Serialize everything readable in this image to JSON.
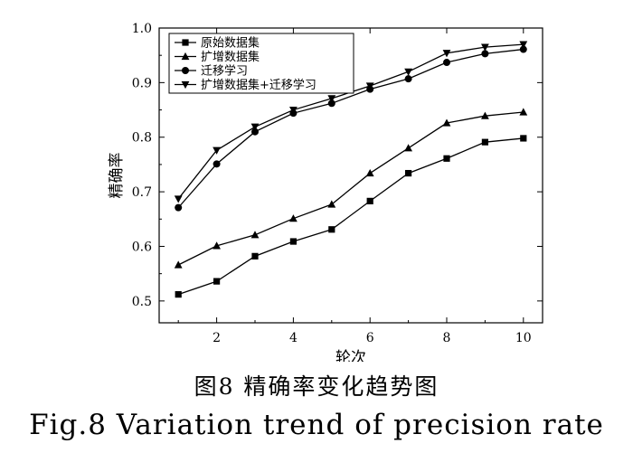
{
  "chart_data": {
    "type": "line",
    "title": "",
    "xlabel": "轮次",
    "ylabel": "精确率",
    "x": [
      1,
      2,
      3,
      4,
      5,
      6,
      7,
      8,
      9,
      10
    ],
    "xlim": [
      0.5,
      10.5
    ],
    "ylim": [
      0.46,
      1.0
    ],
    "xticks": [
      2,
      4,
      6,
      8,
      10
    ],
    "yticks": [
      0.5,
      0.6,
      0.7,
      0.8,
      0.9,
      1.0
    ],
    "ytick_labels": [
      "0.5",
      "0.6",
      "0.7",
      "0.8",
      "0.9",
      "1.0"
    ],
    "grid": false,
    "legend_position": "top-left",
    "series": [
      {
        "name": "原始数据集",
        "marker": "square",
        "values": [
          0.512,
          0.536,
          0.582,
          0.609,
          0.631,
          0.683,
          0.734,
          0.761,
          0.791,
          0.798
        ]
      },
      {
        "name": "扩增数据集",
        "marker": "triangle-up",
        "values": [
          0.566,
          0.601,
          0.621,
          0.651,
          0.677,
          0.734,
          0.78,
          0.826,
          0.839,
          0.846
        ]
      },
      {
        "name": "迁移学习",
        "marker": "circle",
        "values": [
          0.671,
          0.751,
          0.81,
          0.844,
          0.862,
          0.888,
          0.907,
          0.937,
          0.953,
          0.961
        ]
      },
      {
        "name": "扩增数据集+迁移学习",
        "marker": "triangle-down",
        "values": [
          0.687,
          0.776,
          0.819,
          0.85,
          0.871,
          0.894,
          0.92,
          0.954,
          0.965,
          0.97
        ]
      }
    ]
  },
  "caption": {
    "cn": "图8 精确率变化趋势图",
    "en": "Fig.8 Variation trend of precision rate"
  }
}
